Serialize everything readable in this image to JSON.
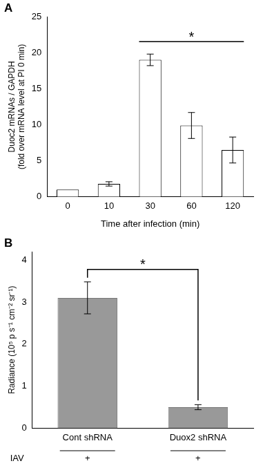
{
  "chart_data": [
    {
      "type": "bar",
      "panel": "A",
      "y_label": [
        "Duoc2 mRNAs / GAPDH",
        "(fold over mRNA level at PI 0 min)"
      ],
      "x_label": "Time after infection (min)",
      "categories": [
        "0",
        "10",
        "30",
        "60",
        "120"
      ],
      "values": [
        1,
        1.8,
        19,
        9.9,
        6.5
      ],
      "errors": [
        0,
        0.3,
        0.8,
        1.8,
        1.8
      ],
      "color": "#ffffff",
      "ylim": [
        0,
        25
      ],
      "yticks": [
        0,
        5,
        10,
        15,
        20,
        25
      ],
      "grid": false,
      "significance": {
        "label": "*",
        "from": "30",
        "to": "120",
        "kind": "line"
      }
    },
    {
      "type": "bar",
      "panel": "B",
      "y_label": "Radiance (10⁵ p s⁻¹ cm⁻² sr⁻¹)",
      "categories": [
        "Cont shRNA",
        "Duox2 shRNA"
      ],
      "values": [
        3.1,
        0.5
      ],
      "errors": [
        0.38,
        0.06
      ],
      "color": "#999999",
      "ylim": [
        0,
        4.2
      ],
      "yticks": [
        0,
        1,
        2,
        3,
        4
      ],
      "grid": false,
      "row": {
        "label": "IAV",
        "values": [
          "+",
          "+"
        ]
      },
      "significance": {
        "label": "*",
        "from": "Cont shRNA",
        "to": "Duox2 shRNA",
        "kind": "bracket"
      }
    }
  ]
}
